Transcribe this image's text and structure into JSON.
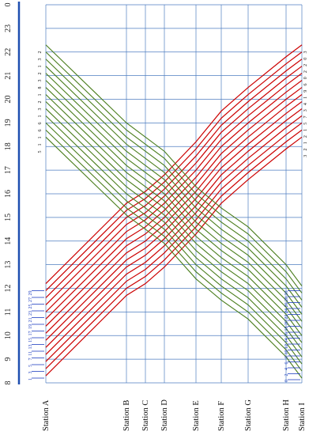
{
  "hours": [
    "8",
    "9",
    "10",
    "11",
    "12",
    "13",
    "14",
    "15",
    "16",
    "17",
    "18",
    "19",
    "20",
    "21",
    "22",
    "23",
    "0"
  ],
  "stations": [
    "Station A",
    "Station B",
    "Station C",
    "Station D",
    "Station E",
    "Station F",
    "Station G",
    "Station H",
    "Station I"
  ],
  "colors": {
    "grid": "#4f7ec1",
    "outbound": "#cc0000",
    "inbound": "#4a7d1c",
    "axis_bar": "#1f4fb0",
    "blue_ticks": "#1f3fc0"
  },
  "station_a_label_sequence": [
    "1",
    "3",
    "5",
    "7",
    "11",
    "13",
    "15",
    "17",
    "19",
    "21",
    "23",
    "25",
    "27",
    "29"
  ],
  "station_i_label_sequence": [
    "0",
    "2",
    "4",
    "6",
    "8",
    "10",
    "12",
    "14",
    "16",
    "18",
    "20",
    "22",
    "24",
    "26",
    "28",
    "30"
  ],
  "top_right_labels": [
    "3",
    "0",
    "2",
    "2",
    "0",
    "6",
    "9",
    "1",
    "4",
    "3",
    "7",
    "5",
    "1",
    "2",
    "1",
    "2",
    "3"
  ],
  "top_left_labels": [
    "2",
    "3",
    "1",
    "2",
    "3",
    "8",
    "1",
    "2",
    "3",
    "1",
    "6",
    "6",
    "1",
    "1",
    "5"
  ]
}
